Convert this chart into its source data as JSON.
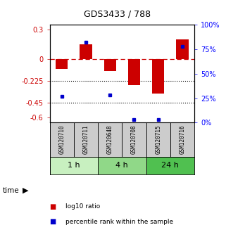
{
  "title": "GDS3433 / 788",
  "samples": [
    "GSM120710",
    "GSM120711",
    "GSM120648",
    "GSM120708",
    "GSM120715",
    "GSM120716"
  ],
  "log10_ratio": [
    -0.1,
    0.15,
    -0.12,
    -0.27,
    -0.35,
    0.2
  ],
  "percentile": [
    27,
    82,
    28,
    3,
    3,
    78
  ],
  "groups": [
    {
      "label": "1 h",
      "start": 0,
      "end": 2,
      "color": "#c8f0c0"
    },
    {
      "label": "4 h",
      "start": 2,
      "end": 4,
      "color": "#90d888"
    },
    {
      "label": "24 h",
      "start": 4,
      "end": 6,
      "color": "#50c050"
    }
  ],
  "ylim_left": [
    -0.65,
    0.35
  ],
  "yticks_left": [
    0.3,
    0.0,
    -0.225,
    -0.45,
    -0.6
  ],
  "ytick_labels_left": [
    "0.3",
    "0",
    "-0.225",
    "-0.45",
    "-0.6"
  ],
  "yticks_right_vals": [
    100,
    75,
    50,
    25,
    0
  ],
  "bar_color_red": "#cc0000",
  "dot_color_blue": "#0000cc",
  "hline_y": 0.0,
  "dotted_lines": [
    -0.225,
    -0.45
  ],
  "background_color": "#ffffff",
  "bar_width": 0.5,
  "percentile_scale_max": 100,
  "sample_box_color": "#cccccc",
  "title_fontsize": 9,
  "tick_fontsize": 7,
  "legend_fontsize": 6.5,
  "sample_fontsize": 5.5,
  "time_fontsize": 8
}
